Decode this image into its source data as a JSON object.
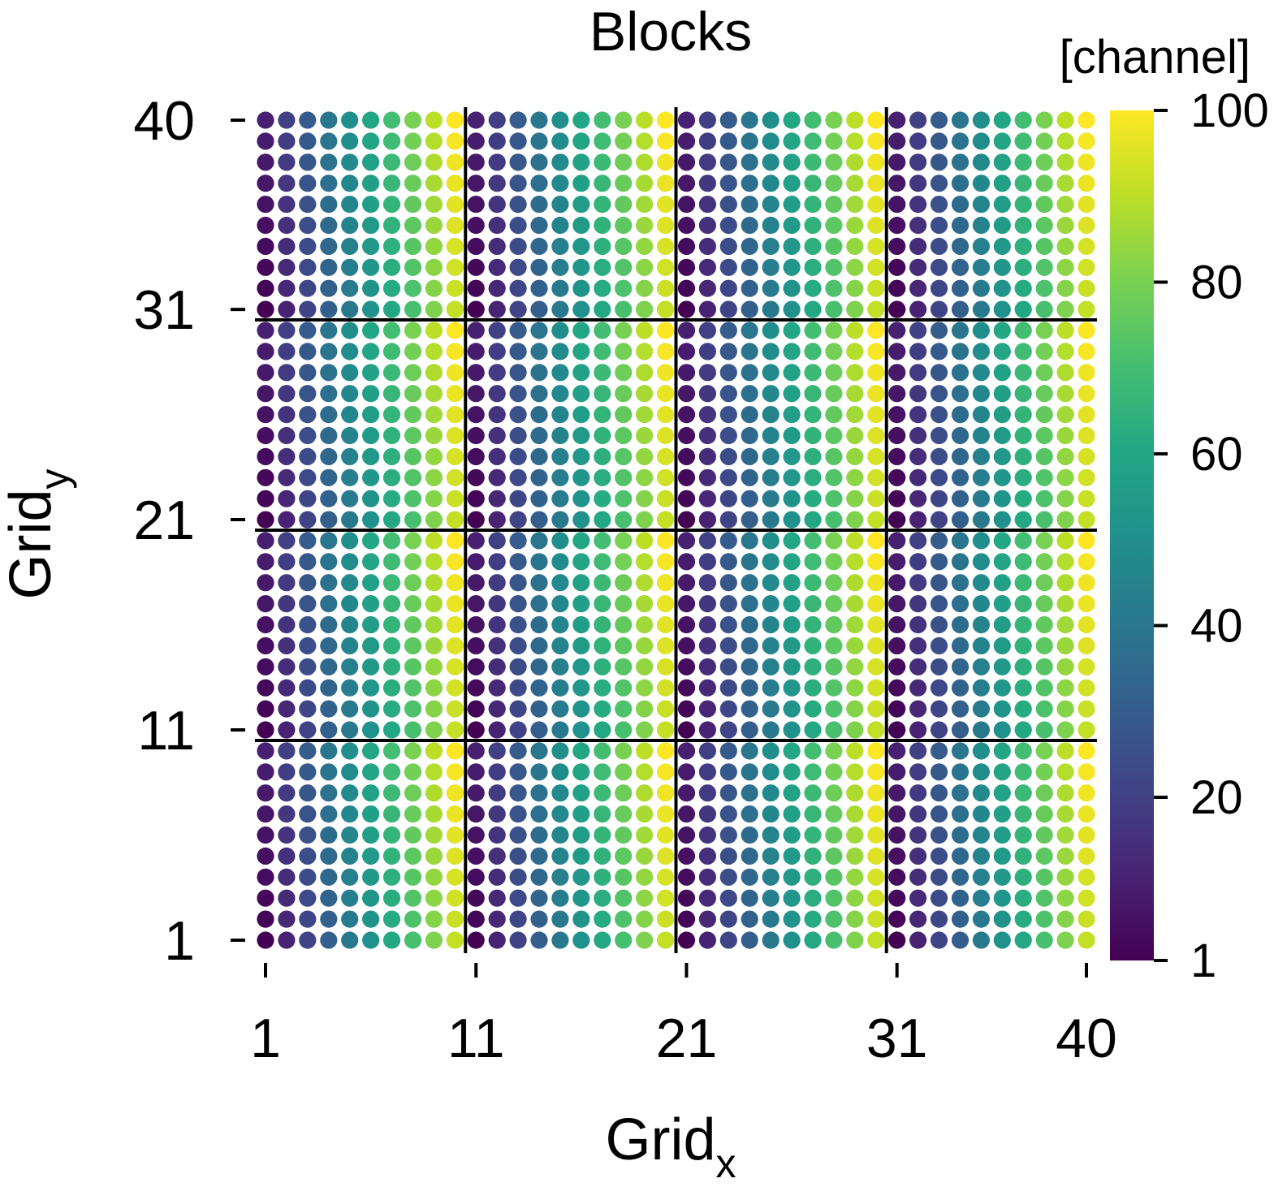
{
  "chart_data": {
    "type": "scatter",
    "title": "Blocks",
    "xlabel": "Grid",
    "xlabel_sub": "x",
    "ylabel": "Grid",
    "ylabel_sub": "y",
    "xticks": [
      1,
      11,
      21,
      31,
      40
    ],
    "yticks": [
      1,
      11,
      21,
      31,
      40
    ],
    "xlim": [
      1,
      40
    ],
    "ylim": [
      1,
      40
    ],
    "grid": false,
    "block_size": 10,
    "block_boundaries": [
      10.5,
      20.5,
      30.5
    ],
    "color_rule": "channel = 10 * (column within block, 0-9) + (row within block, 0-9) + 1",
    "colorbar": {
      "label": "[channel]",
      "ticks": [
        1,
        20,
        40,
        60,
        80,
        100
      ],
      "range": [
        1,
        100
      ],
      "colormap": "viridis"
    }
  }
}
